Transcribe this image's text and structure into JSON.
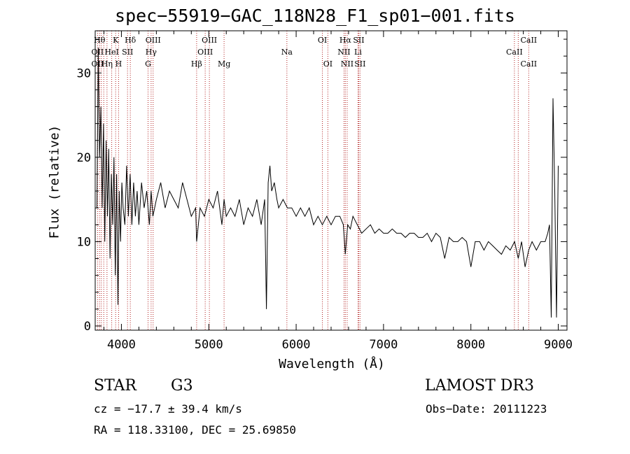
{
  "title": "spec−55919−GAC_118N28_F1_sp01−001.fits",
  "footer": {
    "object_class": "STAR",
    "subclass": "G3",
    "cz_line": "cz = −17.7 ± 39.4 km/s",
    "radec_line": "RA = 118.33100, DEC =  25.69850",
    "survey": "LAMOST DR3",
    "obs_date_line": "Obs−Date: 20111223"
  },
  "colors": {
    "spectrum": "#000000",
    "line_markers": "#b22222",
    "axes": "#000000"
  },
  "chart_data": {
    "type": "line",
    "title": "spec−55919−GAC_118N28_F1_sp01−001.fits",
    "xlabel": "Wavelength (Å)",
    "ylabel": "Flux (relative)",
    "xlim": [
      3700,
      9100
    ],
    "ylim": [
      -0.5,
      35
    ],
    "x_ticks": [
      4000,
      5000,
      6000,
      7000,
      8000,
      9000
    ],
    "y_ticks": [
      0,
      10,
      20,
      30
    ],
    "grid": false,
    "legend": "none",
    "series": [
      {
        "name": "flux",
        "x": [
          3720,
          3735,
          3750,
          3765,
          3780,
          3795,
          3810,
          3825,
          3840,
          3855,
          3870,
          3885,
          3900,
          3915,
          3930,
          3945,
          3960,
          3975,
          3990,
          4005,
          4020,
          4040,
          4060,
          4080,
          4100,
          4120,
          4140,
          4160,
          4180,
          4200,
          4230,
          4260,
          4290,
          4320,
          4340,
          4360,
          4400,
          4450,
          4500,
          4550,
          4600,
          4650,
          4700,
          4750,
          4800,
          4850,
          4861,
          4900,
          4950,
          5000,
          5050,
          5100,
          5150,
          5175,
          5200,
          5250,
          5300,
          5350,
          5400,
          5450,
          5500,
          5550,
          5600,
          5640,
          5660,
          5680,
          5700,
          5720,
          5750,
          5780,
          5800,
          5850,
          5900,
          5950,
          6000,
          6050,
          6100,
          6150,
          6200,
          6250,
          6300,
          6350,
          6400,
          6450,
          6500,
          6540,
          6563,
          6590,
          6620,
          6650,
          6700,
          6750,
          6800,
          6850,
          6900,
          6950,
          7000,
          7050,
          7100,
          7150,
          7200,
          7250,
          7300,
          7350,
          7400,
          7450,
          7500,
          7550,
          7600,
          7650,
          7700,
          7750,
          7800,
          7850,
          7900,
          7950,
          8000,
          8050,
          8100,
          8150,
          8200,
          8250,
          8300,
          8350,
          8400,
          8450,
          8500,
          8542,
          8580,
          8620,
          8662,
          8700,
          8750,
          8800,
          8850,
          8880,
          8900,
          8920,
          8940,
          8960,
          8980,
          9000
        ],
        "y": [
          14,
          33,
          20,
          26,
          14,
          24,
          10,
          22,
          13,
          21,
          8,
          18,
          12,
          20,
          6,
          18,
          2.5,
          16,
          10,
          17,
          14,
          12,
          19,
          13,
          18,
          12,
          17,
          13,
          16,
          12,
          17,
          14,
          16,
          12,
          16,
          13,
          15,
          17,
          14,
          16,
          15,
          14,
          17,
          15,
          13,
          14,
          10,
          14,
          13,
          15,
          14,
          16,
          12,
          15,
          13,
          14,
          13,
          15,
          12,
          14,
          13,
          15,
          12,
          15,
          2,
          17,
          19,
          16,
          17,
          15,
          14,
          15,
          14,
          14,
          13,
          14,
          13,
          14,
          12,
          13,
          12,
          13,
          12,
          13,
          13,
          12,
          8.5,
          12,
          11.5,
          13,
          12,
          11,
          11.5,
          12,
          11,
          11.5,
          11,
          11,
          11.5,
          11,
          11,
          10.5,
          11,
          11,
          10.5,
          10.5,
          11,
          10,
          11,
          10.5,
          8,
          10.5,
          10,
          10,
          10.5,
          10,
          7,
          10,
          10,
          9,
          10,
          9.5,
          9,
          8.5,
          9.5,
          9,
          10,
          8,
          10,
          7,
          9,
          10,
          9,
          10,
          10,
          11,
          12,
          1,
          27,
          16,
          1,
          19
        ]
      }
    ],
    "line_labels": [
      {
        "name": "OII",
        "wavelength": 3727,
        "row": 2
      },
      {
        "name": "Hθ",
        "wavelength": 3750,
        "row": 0
      },
      {
        "name": "OII",
        "wavelength": 3727,
        "row": 1
      },
      {
        "name": "Hη",
        "wavelength": 3835,
        "row": 2
      },
      {
        "name": "HeI",
        "wavelength": 3889,
        "row": 1
      },
      {
        "name": "K",
        "wavelength": 3934,
        "row": 0
      },
      {
        "name": "H",
        "wavelength": 3968,
        "row": 2
      },
      {
        "name": "SII",
        "wavelength": 4070,
        "row": 1
      },
      {
        "name": "Hδ",
        "wavelength": 4102,
        "row": 0
      },
      {
        "name": "OIII",
        "wavelength": 4363,
        "row": 0
      },
      {
        "name": "Hγ",
        "wavelength": 4340,
        "row": 1
      },
      {
        "name": "G",
        "wavelength": 4305,
        "row": 2
      },
      {
        "name": "Hβ",
        "wavelength": 4861,
        "row": 2
      },
      {
        "name": "OIII",
        "wavelength": 5007,
        "row": 0
      },
      {
        "name": "OIII",
        "wavelength": 4959,
        "row": 1
      },
      {
        "name": "Mg",
        "wavelength": 5175,
        "row": 2
      },
      {
        "name": "Na",
        "wavelength": 5894,
        "row": 1
      },
      {
        "name": "OI",
        "wavelength": 6300,
        "row": 0
      },
      {
        "name": "OI",
        "wavelength": 6363,
        "row": 2
      },
      {
        "name": "Hα",
        "wavelength": 6563,
        "row": 0
      },
      {
        "name": "SII",
        "wavelength": 6716,
        "row": 0
      },
      {
        "name": "NII",
        "wavelength": 6548,
        "row": 1
      },
      {
        "name": "Li",
        "wavelength": 6708,
        "row": 1
      },
      {
        "name": "NII",
        "wavelength": 6584,
        "row": 2
      },
      {
        "name": "SII",
        "wavelength": 6731,
        "row": 2
      },
      {
        "name": "CaII",
        "wavelength": 8662,
        "row": 0
      },
      {
        "name": "CaII",
        "wavelength": 8498,
        "row": 1
      },
      {
        "name": "CaII",
        "wavelength": 8662,
        "row": 2
      }
    ],
    "line_markers": [
      3727,
      3750,
      3770,
      3798,
      3835,
      3889,
      3934,
      3968,
      4070,
      4102,
      4305,
      4340,
      4363,
      4861,
      4959,
      5007,
      5175,
      5894,
      6300,
      6363,
      6548,
      6563,
      6584,
      6708,
      6716,
      6731,
      8498,
      8542,
      8662
    ]
  }
}
